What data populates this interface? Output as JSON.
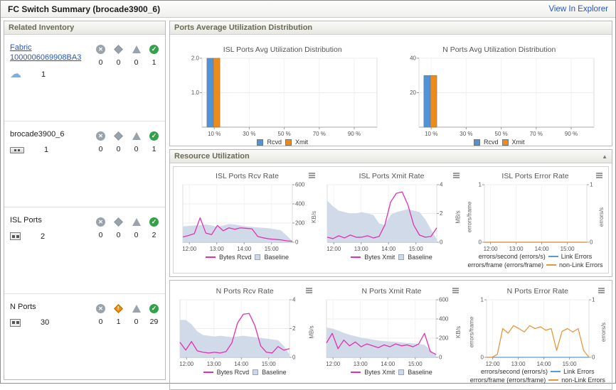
{
  "header": {
    "title": "FC Switch Summary (brocade3900_6)",
    "link": "View In Explorer"
  },
  "icons": {
    "critical": "✕",
    "healthy": "✓",
    "fabric_cloud": "☁",
    "alert": "!"
  },
  "colors": {
    "link": "#2456c4",
    "rcvd_bar": "#4f93d8",
    "xmit_bar": "#ee8b18",
    "line_magenta": "#e330ae",
    "baseline": "#cfd8e8",
    "link_errors": "#5b9bd5",
    "non_link_errors": "#e8963c"
  },
  "inventory": {
    "title": "Related Inventory",
    "rows": [
      {
        "label": "Fabric",
        "label2": "1000006069908BA3",
        "count": "1",
        "statuses": [
          {
            "value": "0"
          },
          {
            "value": "0"
          },
          {
            "value": "0"
          },
          {
            "value": "1"
          }
        ]
      },
      {
        "label": "brocade3900_6",
        "count": "1",
        "statuses": [
          {
            "value": "0"
          },
          {
            "value": "0"
          },
          {
            "value": "0"
          },
          {
            "value": "1"
          }
        ]
      },
      {
        "label": "ISL Ports",
        "count": "2",
        "statuses": [
          {
            "value": "0"
          },
          {
            "value": "0"
          },
          {
            "value": "0"
          },
          {
            "value": "2"
          }
        ]
      },
      {
        "label": "N Ports",
        "count": "30",
        "statuses": [
          {
            "value": "0"
          },
          {
            "value": "1"
          },
          {
            "value": "0"
          },
          {
            "value": "29"
          }
        ]
      }
    ]
  },
  "panels": {
    "distribution": {
      "title": "Ports Average Utilization Distribution"
    },
    "resource": {
      "title": "Resource Utilization",
      "collapse_icon": "▲"
    }
  },
  "charts": {
    "isl_dist": {
      "type": "bar",
      "title": "ISL Ports Avg Utilization Distribution",
      "label_side": "left",
      "ylim": [
        0,
        2
      ],
      "yticks": [
        {
          "v": 1,
          "label": "1.0"
        },
        {
          "v": 2,
          "label": "2.0"
        }
      ],
      "xticks": [
        {
          "f": 0.07,
          "label": "10 %"
        },
        {
          "f": 0.27,
          "label": "30 %"
        },
        {
          "f": 0.47,
          "label": "50 %"
        },
        {
          "f": 0.67,
          "label": "70 %"
        },
        {
          "f": 0.87,
          "label": "90 %"
        }
      ],
      "series": [
        {
          "name": "Rcvd",
          "color": "#4f93d8",
          "value": 2.0
        },
        {
          "name": "Xmit",
          "color": "#ee8b18",
          "value": 2.0
        }
      ]
    },
    "n_dist": {
      "type": "bar",
      "title": "N Ports Avg Utilization Distribution",
      "label_side": "left",
      "ylim": [
        0,
        40
      ],
      "yticks": [
        {
          "v": 20,
          "label": "20"
        },
        {
          "v": 40,
          "label": "40"
        }
      ],
      "xticks": [
        {
          "f": 0.07,
          "label": "10 %"
        },
        {
          "f": 0.27,
          "label": "30 %"
        },
        {
          "f": 0.47,
          "label": "50 %"
        },
        {
          "f": 0.67,
          "label": "70 %"
        },
        {
          "f": 0.87,
          "label": "90 %"
        }
      ],
      "series": [
        {
          "name": "Rcvd",
          "color": "#4f93d8",
          "value": 30
        },
        {
          "name": "Xmit",
          "color": "#ee8b18",
          "value": 30
        }
      ]
    },
    "isl_rcv": {
      "type": "line",
      "title": "ISL Ports Rcv Rate",
      "ylabel": "KB/s",
      "label_side": "right",
      "ylim": [
        0,
        600
      ],
      "yticks": [
        {
          "v": 0,
          "label": "0"
        },
        {
          "v": 200,
          "label": "200"
        },
        {
          "v": 400,
          "label": "400"
        },
        {
          "v": 600,
          "label": "600"
        }
      ],
      "xticks": [
        {
          "f": 0.06,
          "label": "12:00"
        },
        {
          "f": 0.31,
          "label": "13:00"
        },
        {
          "f": 0.56,
          "label": "14:00"
        },
        {
          "f": 0.81,
          "label": "15:00"
        }
      ],
      "series": [
        {
          "name": "Baseline",
          "kind": "area",
          "color": "#cfd8e8",
          "values": [
            165,
            170,
            175,
            180,
            185,
            175,
            160,
            175,
            190,
            185,
            175,
            165,
            160,
            155,
            150,
            145,
            135,
            125,
            70,
            15
          ]
        },
        {
          "name": "Bytes Rcvd",
          "kind": "line",
          "color": "#e330ae",
          "values": [
            55,
            70,
            90,
            255,
            95,
            80,
            175,
            120,
            150,
            135,
            150,
            145,
            140,
            60,
            45,
            35,
            30,
            25,
            15,
            10
          ]
        }
      ]
    },
    "isl_xmit": {
      "type": "line",
      "title": "ISL Ports Xmit Rate",
      "ylabel": "MB/s",
      "label_side": "right",
      "ylim": [
        0,
        4
      ],
      "yticks": [
        {
          "v": 0,
          "label": "0"
        },
        {
          "v": 2,
          "label": "2"
        },
        {
          "v": 4,
          "label": "4"
        }
      ],
      "xticks": [
        {
          "f": 0.06,
          "label": "12:00"
        },
        {
          "f": 0.31,
          "label": "13:00"
        },
        {
          "f": 0.56,
          "label": "14:00"
        },
        {
          "f": 0.81,
          "label": "15:00"
        }
      ],
      "series": [
        {
          "name": "Baseline",
          "kind": "area",
          "color": "#cfd8e8",
          "values": [
            2.9,
            2.5,
            2.2,
            2.1,
            2.0,
            2.0,
            2.1,
            2.0,
            1.9,
            1.3,
            1.2,
            1.9,
            2.1,
            2.2,
            2.3,
            2.2,
            2.1,
            1.6,
            0.9,
            0.2
          ]
        },
        {
          "name": "Bytes Xmit",
          "kind": "line",
          "color": "#e330ae",
          "values": [
            0.35,
            0.25,
            0.45,
            0.3,
            0.5,
            0.35,
            0.35,
            0.45,
            0.3,
            0.4,
            1.2,
            2.8,
            3.4,
            3.5,
            2.6,
            1.2,
            0.5,
            0.35,
            0.4,
            1.0
          ]
        }
      ]
    },
    "isl_err": {
      "type": "line",
      "title": "ISL Ports Error Rate",
      "ylabel_left": "errors/frame",
      "ylabel_right": "errors/s",
      "label_side": "both",
      "ylim": [
        0,
        1
      ],
      "yticks": [
        {
          "v": 0,
          "label": "0"
        },
        {
          "v": 1,
          "label": "1"
        }
      ],
      "xticks": [
        {
          "f": 0.06,
          "label": "12:00"
        },
        {
          "f": 0.31,
          "label": "13:00"
        },
        {
          "f": 0.56,
          "label": "14:00"
        },
        {
          "f": 0.81,
          "label": "15:00"
        }
      ],
      "series": [
        {
          "name": "Link Errors",
          "kind": "line",
          "color": "#5b9bd5",
          "values": [
            0,
            0,
            0,
            0,
            0,
            0,
            0,
            0,
            0,
            0,
            0,
            0,
            0,
            0,
            0,
            0,
            0,
            0,
            0,
            0
          ]
        },
        {
          "name": "non-Link Errors",
          "kind": "line",
          "color": "#e8963c",
          "values": [
            0,
            0,
            0,
            0,
            0,
            0,
            0,
            0,
            0,
            0,
            0,
            0,
            0,
            0,
            0,
            0,
            0,
            0,
            0,
            0
          ]
        }
      ],
      "legend": [
        {
          "prefix": "errors/second (errors/s)"
        },
        {
          "prefix": "errors/frame (errors/frame)"
        }
      ]
    },
    "n_rcv": {
      "type": "line",
      "title": "N Ports Rcv Rate",
      "ylabel": "MB/s",
      "label_side": "right",
      "ylim": [
        0,
        4
      ],
      "yticks": [
        {
          "v": 0,
          "label": "0"
        },
        {
          "v": 2,
          "label": "2"
        },
        {
          "v": 4,
          "label": "4"
        }
      ],
      "xticks": [
        {
          "f": 0.06,
          "label": "12:00"
        },
        {
          "f": 0.31,
          "label": "13:00"
        },
        {
          "f": 0.56,
          "label": "14:00"
        },
        {
          "f": 0.81,
          "label": "15:00"
        }
      ],
      "series": [
        {
          "name": "Baseline",
          "kind": "area",
          "color": "#cfd8e8",
          "values": [
            2.6,
            2.6,
            2.3,
            1.8,
            1.55,
            1.5,
            1.45,
            1.5,
            1.45,
            1.4,
            1.45,
            1.5,
            1.45,
            1.4,
            1.35,
            1.3,
            1.25,
            1.2,
            0.8,
            0.2
          ]
        },
        {
          "name": "Bytes Rcvd",
          "kind": "line",
          "color": "#e330ae",
          "values": [
            1.05,
            0.5,
            1.1,
            0.45,
            0.35,
            0.3,
            0.35,
            0.3,
            0.4,
            1.0,
            2.4,
            3.0,
            3.05,
            2.2,
            0.8,
            0.35,
            0.3,
            0.75,
            0.5,
            0.6
          ]
        }
      ]
    },
    "n_xmit": {
      "type": "line",
      "title": "N Ports Xmit Rate",
      "ylabel": "KB/s",
      "label_side": "right",
      "ylim": [
        0,
        600
      ],
      "yticks": [
        {
          "v": 0,
          "label": "0"
        },
        {
          "v": 200,
          "label": "200"
        },
        {
          "v": 400,
          "label": "400"
        },
        {
          "v": 600,
          "label": "600"
        }
      ],
      "xticks": [
        {
          "f": 0.06,
          "label": "12:00"
        },
        {
          "f": 0.31,
          "label": "13:00"
        },
        {
          "f": 0.56,
          "label": "14:00"
        },
        {
          "f": 0.81,
          "label": "15:00"
        }
      ],
      "series": [
        {
          "name": "Baseline",
          "kind": "area",
          "color": "#cfd8e8",
          "values": [
            310,
            300,
            280,
            255,
            235,
            220,
            205,
            195,
            185,
            175,
            170,
            165,
            160,
            155,
            150,
            145,
            140,
            130,
            80,
            20
          ]
        },
        {
          "name": "Bytes Xmit",
          "kind": "line",
          "color": "#e330ae",
          "values": [
            150,
            250,
            90,
            180,
            120,
            160,
            110,
            140,
            120,
            100,
            130,
            110,
            140,
            120,
            130,
            110,
            140,
            250,
            60,
            30
          ]
        }
      ]
    },
    "n_err": {
      "type": "line",
      "title": "N Ports Error Rate",
      "ylabel_left": "errors/frame",
      "ylabel_right": "errors/s",
      "label_side": "both",
      "ylim": [
        0,
        1
      ],
      "yticks": [
        {
          "v": 0,
          "label": "0"
        },
        {
          "v": 1,
          "label": "1"
        }
      ],
      "xticks": [
        {
          "f": 0.06,
          "label": "12:00"
        },
        {
          "f": 0.31,
          "label": "13:00"
        },
        {
          "f": 0.56,
          "label": "14:00"
        },
        {
          "f": 0.81,
          "label": "15:00"
        }
      ],
      "series": [
        {
          "name": "Link Errors",
          "kind": "line",
          "color": "#5b9bd5",
          "values": [
            0,
            0,
            0,
            0,
            0,
            0,
            0,
            0,
            0,
            0,
            0,
            0,
            0,
            0,
            0,
            0,
            0,
            0,
            0,
            0
          ]
        },
        {
          "name": "non-Link Errors",
          "kind": "line",
          "color": "#e8963c",
          "values": [
            0,
            0,
            0.05,
            0.5,
            0.42,
            0.55,
            0.5,
            0.44,
            0.55,
            0.5,
            0.53,
            0.47,
            0.5,
            0.12,
            0.45,
            0.5,
            0.44,
            0.5,
            0.12,
            0
          ]
        }
      ],
      "legend": [
        {
          "prefix": "errors/second (errors/s)"
        },
        {
          "prefix": "errors/frame (errors/frame)"
        }
      ]
    }
  }
}
